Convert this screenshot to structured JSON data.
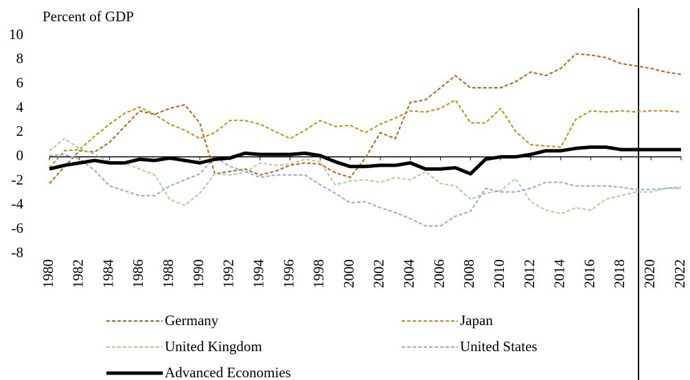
{
  "chart_data": {
    "type": "line",
    "y_label": "Percent of GDP",
    "x": [
      1980,
      1981,
      1982,
      1983,
      1984,
      1985,
      1986,
      1987,
      1988,
      1989,
      1990,
      1991,
      1992,
      1993,
      1994,
      1995,
      1996,
      1997,
      1998,
      1999,
      2000,
      2001,
      2002,
      2003,
      2004,
      2005,
      2006,
      2007,
      2008,
      2009,
      2010,
      2011,
      2012,
      2013,
      2014,
      2015,
      2016,
      2017,
      2018,
      2019,
      2020,
      2021,
      2022
    ],
    "xlim": [
      1980,
      2022
    ],
    "xticks": [
      1980,
      1982,
      1984,
      1986,
      1988,
      1990,
      1992,
      1994,
      1996,
      1998,
      2000,
      2002,
      2004,
      2006,
      2008,
      2010,
      2012,
      2014,
      2016,
      2018,
      2020,
      2022
    ],
    "ylim": [
      -8,
      10
    ],
    "yticks": [
      10,
      8,
      6,
      4,
      2,
      0,
      -2,
      -4,
      -6,
      -8
    ],
    "legend": "bottom",
    "series": [
      {
        "name": "Germany",
        "color": "#c55a11",
        "dashed": true,
        "values": [
          -2.2,
          -0.8,
          0.5,
          0.4,
          1.2,
          2.5,
          3.8,
          3.5,
          4.0,
          4.3,
          2.8,
          -1.4,
          -1.2,
          -1.0,
          -1.5,
          -1.2,
          -0.7,
          -0.5,
          -0.6,
          -1.3,
          -1.7,
          -0.1,
          2.0,
          1.5,
          4.5,
          4.7,
          5.7,
          6.7,
          5.7,
          5.7,
          5.7,
          6.2,
          7.0,
          6.7,
          7.3,
          8.5,
          8.4,
          8.2,
          7.7,
          7.5,
          7.3,
          7.0,
          6.8
        ]
      },
      {
        "name": "Japan",
        "color": "#bf9000",
        "dashed": true,
        "values": [
          -0.9,
          0.5,
          0.6,
          1.7,
          2.7,
          3.6,
          4.1,
          3.5,
          2.7,
          2.2,
          1.5,
          2.0,
          3.0,
          3.0,
          2.7,
          2.1,
          1.5,
          2.2,
          3.0,
          2.5,
          2.6,
          2.0,
          2.7,
          3.2,
          3.8,
          3.7,
          4.0,
          4.7,
          2.8,
          2.8,
          4.0,
          2.1,
          1.0,
          0.9,
          0.8,
          3.1,
          3.8,
          3.7,
          3.8,
          3.7,
          3.8,
          3.8,
          3.7
        ]
      },
      {
        "name": "United Kingdom",
        "color": "#a9d18e",
        "dashed": true,
        "values": [
          0.5,
          1.5,
          0.7,
          0.2,
          -0.4,
          -0.5,
          -1.0,
          -1.5,
          -3.5,
          -4.0,
          -3.0,
          -1.4,
          -1.5,
          -1.3,
          -0.5,
          -0.7,
          -0.6,
          -0.2,
          -0.4,
          -2.3,
          -2.0,
          -1.9,
          -2.1,
          -1.7,
          -1.9,
          -1.2,
          -2.2,
          -2.4,
          -3.5,
          -3.0,
          -2.8,
          -1.8,
          -3.7,
          -4.4,
          -4.7,
          -4.2,
          -4.4,
          -3.5,
          -3.2,
          -2.9,
          -2.9,
          -2.6,
          -2.6
        ]
      },
      {
        "name": "United States",
        "color": "#8faadc",
        "dashed": true,
        "values": [
          0.1,
          0.2,
          -0.2,
          -1.1,
          -2.4,
          -2.8,
          -3.2,
          -3.2,
          -2.4,
          -1.9,
          -1.4,
          0.0,
          -0.8,
          -1.2,
          -1.7,
          -1.5,
          -1.5,
          -1.5,
          -2.3,
          -3.0,
          -3.8,
          -3.7,
          -4.2,
          -4.6,
          -5.1,
          -5.7,
          -5.7,
          -4.9,
          -4.5,
          -2.6,
          -2.9,
          -2.9,
          -2.6,
          -2.1,
          -2.1,
          -2.4,
          -2.4,
          -2.4,
          -2.5,
          -2.7,
          -2.7,
          -2.6,
          -2.5
        ]
      },
      {
        "name": "Advanced Economies",
        "color": "#000000",
        "dashed": false,
        "values": [
          -1.0,
          -0.7,
          -0.5,
          -0.3,
          -0.5,
          -0.5,
          -0.2,
          -0.3,
          -0.1,
          -0.3,
          -0.5,
          -0.2,
          -0.1,
          0.3,
          0.2,
          0.2,
          0.2,
          0.3,
          0.1,
          -0.4,
          -0.8,
          -0.8,
          -0.7,
          -0.7,
          -0.5,
          -1.0,
          -1.0,
          -0.9,
          -1.4,
          -0.2,
          0.0,
          0.0,
          0.2,
          0.5,
          0.5,
          0.7,
          0.8,
          0.8,
          0.6,
          0.6,
          0.6,
          0.6,
          0.6
        ]
      }
    ]
  }
}
